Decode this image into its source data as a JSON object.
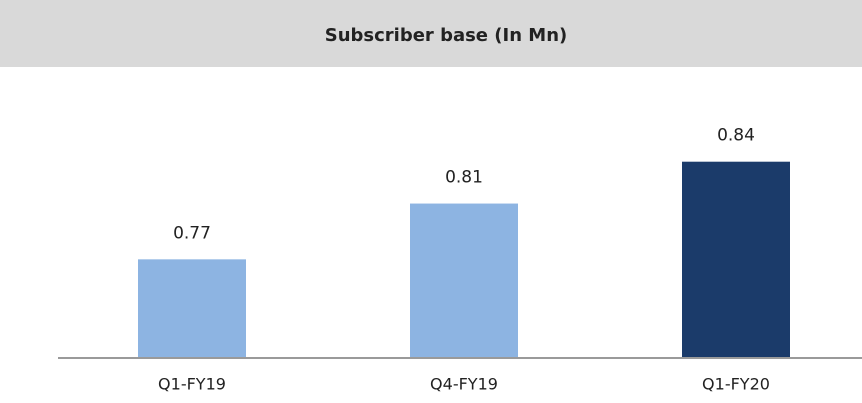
{
  "chart_data": {
    "type": "bar",
    "title": "Subscriber base (In Mn)",
    "categories": [
      "Q1-FY19",
      "Q4-FY19",
      "Q1-FY20"
    ],
    "values": [
      0.77,
      0.81,
      0.84
    ],
    "colors": [
      "#8db4e2",
      "#8db4e2",
      "#1b3b6a"
    ],
    "ylim": [
      0.7,
      0.9
    ]
  }
}
